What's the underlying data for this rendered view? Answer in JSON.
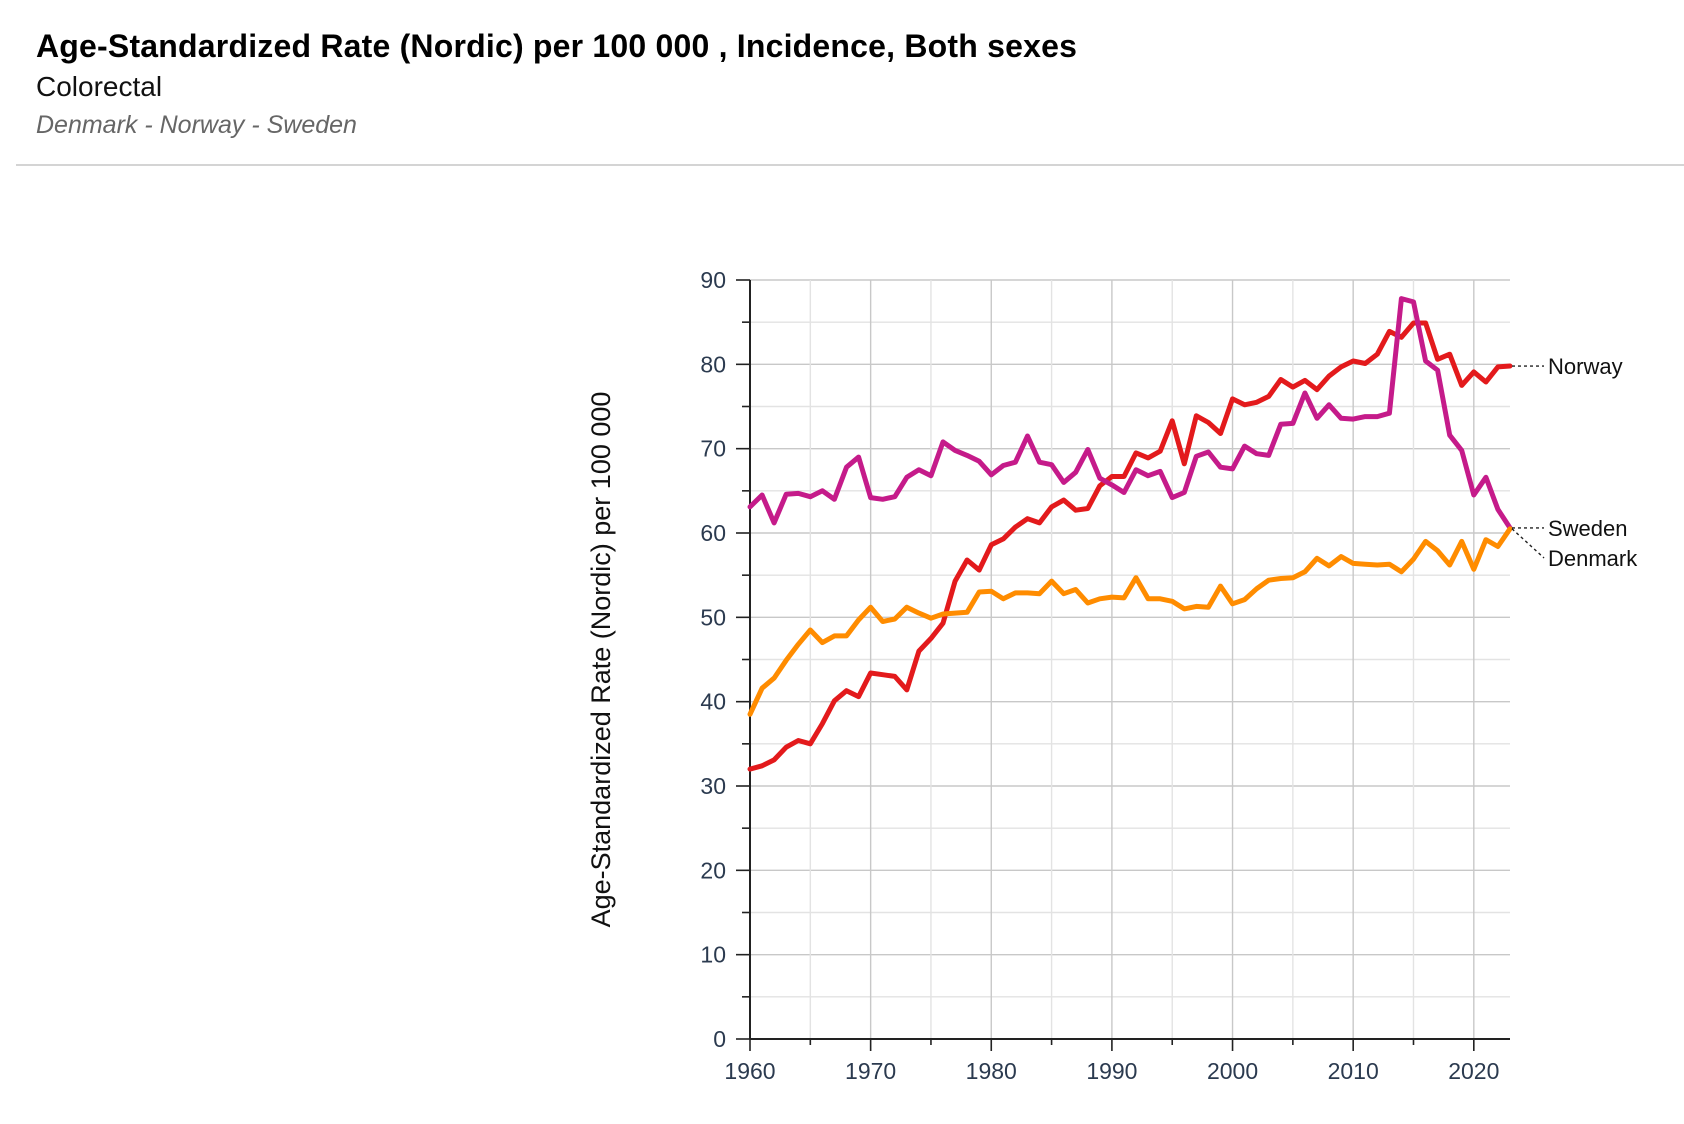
{
  "header": {
    "title": "Age-Standardized Rate (Nordic) per 100 000 , Incidence, Both sexes",
    "subtitle": "Colorectal",
    "countries": "Denmark - Norway - Sweden"
  },
  "chart_data": {
    "type": "line",
    "title": "Age-Standardized Rate (Nordic) per 100 000 , Incidence, Both sexes",
    "subtitle": "Colorectal",
    "xlabel": "",
    "ylabel": "Age-Standardized Rate (Nordic) per 100 000",
    "xlim": [
      1960,
      2023
    ],
    "ylim": [
      0,
      90
    ],
    "xticks": [
      1960,
      1970,
      1980,
      1990,
      2000,
      2010,
      2020
    ],
    "yticks": [
      0,
      10,
      20,
      30,
      40,
      50,
      60,
      70,
      80,
      90
    ],
    "grid": true,
    "legend": "end-of-line labels (right)",
    "x": [
      1960,
      1961,
      1962,
      1963,
      1964,
      1965,
      1966,
      1967,
      1968,
      1969,
      1970,
      1971,
      1972,
      1973,
      1974,
      1975,
      1976,
      1977,
      1978,
      1979,
      1980,
      1981,
      1982,
      1983,
      1984,
      1985,
      1986,
      1987,
      1988,
      1989,
      1990,
      1991,
      1992,
      1993,
      1994,
      1995,
      1996,
      1997,
      1998,
      1999,
      2000,
      2001,
      2002,
      2003,
      2004,
      2005,
      2006,
      2007,
      2008,
      2009,
      2010,
      2011,
      2012,
      2013,
      2014,
      2015,
      2016,
      2017,
      2018,
      2019,
      2020,
      2021,
      2022,
      2023
    ],
    "series": [
      {
        "name": "Norway",
        "color": "#e31a1c",
        "values": [
          32.0,
          32.4,
          33.1,
          34.6,
          35.4,
          35.0,
          37.4,
          40.1,
          41.3,
          40.6,
          43.4,
          43.2,
          43.0,
          41.4,
          46.0,
          47.5,
          49.3,
          54.3,
          56.8,
          55.6,
          58.6,
          59.3,
          60.7,
          61.7,
          61.2,
          63.1,
          63.9,
          62.7,
          62.9,
          65.6,
          66.7,
          66.7,
          69.5,
          68.9,
          69.7,
          73.3,
          68.2,
          73.9,
          73.1,
          71.8,
          75.9,
          75.2,
          75.5,
          76.2,
          78.2,
          77.3,
          78.1,
          77.0,
          78.6,
          79.7,
          80.4,
          80.1,
          81.2,
          83.9,
          83.2,
          84.9,
          84.9,
          80.6,
          81.2,
          77.5,
          79.1,
          77.9,
          79.7,
          79.8
        ]
      },
      {
        "name": "Sweden",
        "color": "#c51b8a",
        "values": [
          63.1,
          64.5,
          61.2,
          64.6,
          64.7,
          64.3,
          65.0,
          64.0,
          67.8,
          69.0,
          64.2,
          64.0,
          64.3,
          66.6,
          67.5,
          66.8,
          70.8,
          69.8,
          69.2,
          68.5,
          66.9,
          68.0,
          68.4,
          71.5,
          68.4,
          68.1,
          66.0,
          67.2,
          69.9,
          66.5,
          65.7,
          64.8,
          67.5,
          66.8,
          67.3,
          64.2,
          64.8,
          69.1,
          69.6,
          67.8,
          67.6,
          70.3,
          69.4,
          69.2,
          72.9,
          73.0,
          76.6,
          73.6,
          75.2,
          73.6,
          73.5,
          73.8,
          73.8,
          74.2,
          87.8,
          87.4,
          80.4,
          79.3,
          71.6,
          69.8,
          64.5,
          66.6,
          62.8,
          60.6
        ]
      },
      {
        "name": "Denmark",
        "color": "#ff8c00",
        "values": [
          38.5,
          41.6,
          42.8,
          44.9,
          46.8,
          48.5,
          47.0,
          47.8,
          47.8,
          49.7,
          51.2,
          49.5,
          49.8,
          51.2,
          50.5,
          49.9,
          50.4,
          50.5,
          50.6,
          53.0,
          53.1,
          52.2,
          52.9,
          52.9,
          52.8,
          54.3,
          52.8,
          53.3,
          51.7,
          52.2,
          52.4,
          52.3,
          54.7,
          52.2,
          52.2,
          51.9,
          51.0,
          51.3,
          51.2,
          53.7,
          51.6,
          52.1,
          53.4,
          54.4,
          54.6,
          54.7,
          55.4,
          57.0,
          56.1,
          57.2,
          56.4,
          56.3,
          56.2,
          56.3,
          55.4,
          56.9,
          59.0,
          57.9,
          56.2,
          59.0,
          55.7,
          59.2,
          58.4,
          60.5
        ]
      }
    ]
  }
}
